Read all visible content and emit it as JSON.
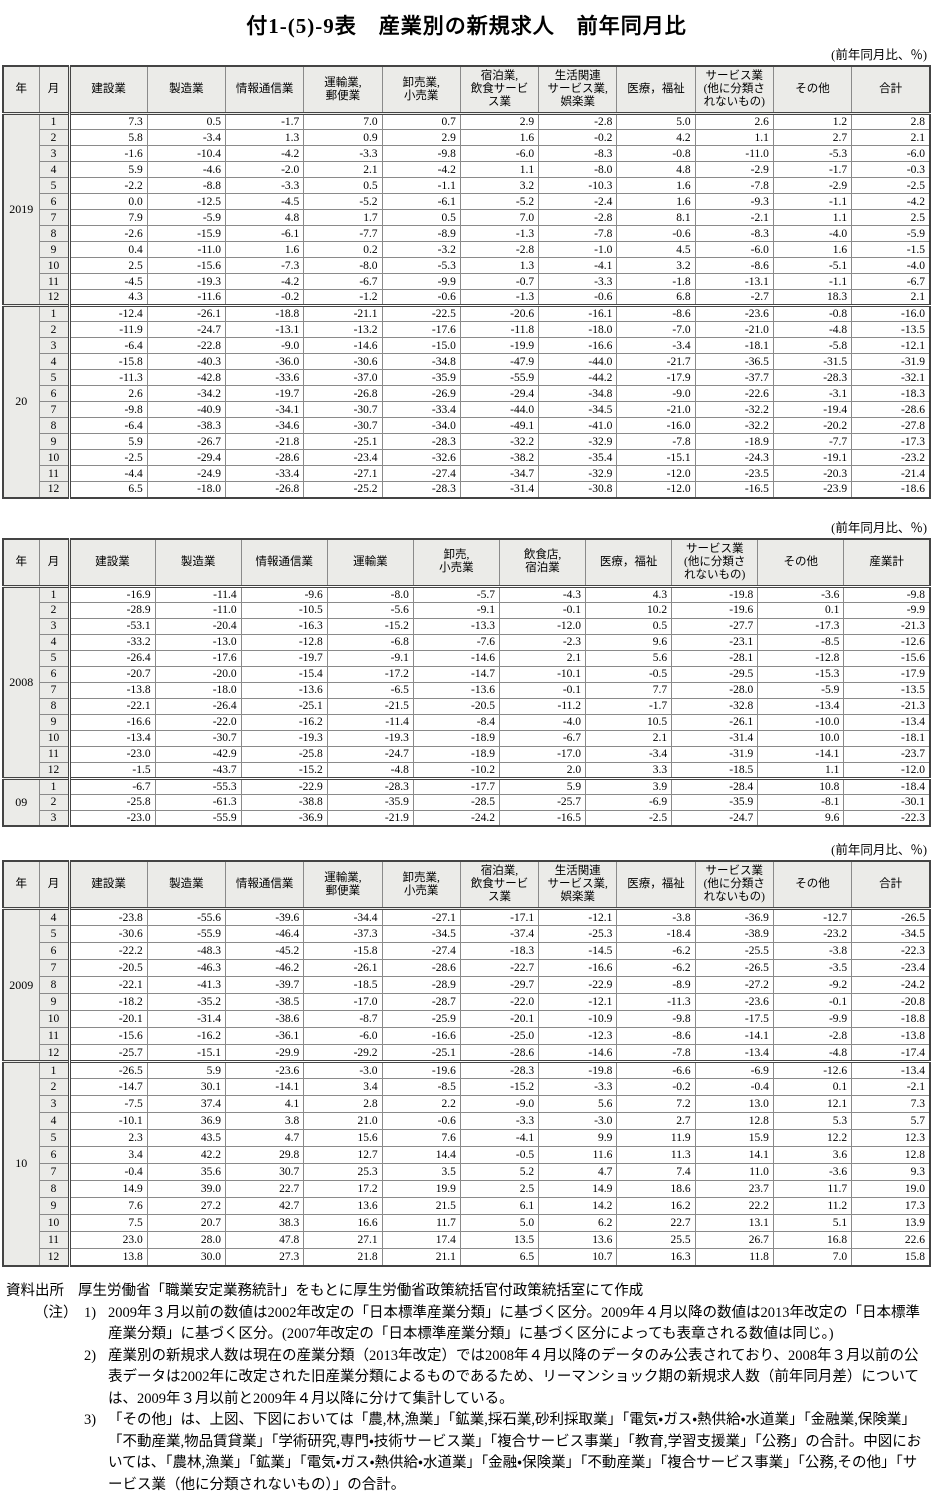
{
  "page": {
    "title": "付1-(5)-9表　産業別の新規求人　前年同月比"
  },
  "tables": [
    {
      "unit_note": "(前年同月比、％)",
      "col_headers": [
        "年",
        "月",
        "建設業",
        "製造業",
        "情報通信業",
        "運輸業,\n郵便業",
        "卸売業,\n小売業",
        "宿泊業,\n飲食サービ\nス業",
        "生活関連\nサービス業,\n娯楽業",
        "医療，福祉",
        "サービス業\n(他に分類さ\nれないもの)",
        "その他",
        "合計"
      ],
      "groups": [
        {
          "year": "2019",
          "rows": [
            [
              "1",
              "7.3",
              "0.5",
              "-1.7",
              "7.0",
              "0.7",
              "2.9",
              "-2.8",
              "5.0",
              "2.6",
              "1.2",
              "2.8"
            ],
            [
              "2",
              "5.8",
              "-3.4",
              "1.3",
              "0.9",
              "2.9",
              "1.6",
              "-0.2",
              "4.2",
              "1.1",
              "2.7",
              "2.1"
            ],
            [
              "3",
              "-1.6",
              "-10.4",
              "-4.2",
              "-3.3",
              "-9.8",
              "-6.0",
              "-8.3",
              "-0.8",
              "-11.0",
              "-5.3",
              "-6.0"
            ],
            [
              "4",
              "5.9",
              "-4.6",
              "-2.0",
              "2.1",
              "-4.2",
              "1.1",
              "-8.0",
              "4.8",
              "-2.9",
              "-1.7",
              "-0.3"
            ],
            [
              "5",
              "-2.2",
              "-8.8",
              "-3.3",
              "0.5",
              "-1.1",
              "3.2",
              "-10.3",
              "1.6",
              "-7.8",
              "-2.9",
              "-2.5"
            ],
            [
              "6",
              "0.0",
              "-12.5",
              "-4.5",
              "-5.2",
              "-6.1",
              "-5.2",
              "-2.4",
              "1.6",
              "-9.3",
              "-1.1",
              "-4.2"
            ],
            [
              "7",
              "7.9",
              "-5.9",
              "4.8",
              "1.7",
              "0.5",
              "7.0",
              "-2.8",
              "8.1",
              "-2.1",
              "1.1",
              "2.5"
            ],
            [
              "8",
              "-2.6",
              "-15.9",
              "-6.1",
              "-7.7",
              "-8.9",
              "-1.3",
              "-7.8",
              "-0.6",
              "-8.3",
              "-4.0",
              "-5.9"
            ],
            [
              "9",
              "0.4",
              "-11.0",
              "1.6",
              "0.2",
              "-3.2",
              "-2.8",
              "-1.0",
              "4.5",
              "-6.0",
              "1.6",
              "-1.5"
            ],
            [
              "10",
              "2.5",
              "-15.6",
              "-7.3",
              "-8.0",
              "-5.3",
              "1.3",
              "-4.1",
              "3.2",
              "-8.6",
              "-5.1",
              "-4.0"
            ],
            [
              "11",
              "-4.5",
              "-19.3",
              "-4.2",
              "-6.7",
              "-9.9",
              "-0.7",
              "-3.3",
              "-1.8",
              "-13.1",
              "-1.1",
              "-6.7"
            ],
            [
              "12",
              "4.3",
              "-11.6",
              "-0.2",
              "-1.2",
              "-0.6",
              "-1.3",
              "-0.6",
              "6.8",
              "-2.7",
              "18.3",
              "2.1"
            ]
          ]
        },
        {
          "year": "20",
          "rows": [
            [
              "1",
              "-12.4",
              "-26.1",
              "-18.8",
              "-21.1",
              "-22.5",
              "-20.6",
              "-16.1",
              "-8.6",
              "-23.6",
              "-0.8",
              "-16.0"
            ],
            [
              "2",
              "-11.9",
              "-24.7",
              "-13.1",
              "-13.2",
              "-17.6",
              "-11.8",
              "-18.0",
              "-7.0",
              "-21.0",
              "-4.8",
              "-13.5"
            ],
            [
              "3",
              "-6.4",
              "-22.8",
              "-9.0",
              "-14.6",
              "-15.0",
              "-19.9",
              "-16.6",
              "-3.4",
              "-18.1",
              "-5.8",
              "-12.1"
            ],
            [
              "4",
              "-15.8",
              "-40.3",
              "-36.0",
              "-30.6",
              "-34.8",
              "-47.9",
              "-44.0",
              "-21.7",
              "-36.5",
              "-31.5",
              "-31.9"
            ],
            [
              "5",
              "-11.3",
              "-42.8",
              "-33.6",
              "-37.0",
              "-35.9",
              "-55.9",
              "-44.2",
              "-17.9",
              "-37.7",
              "-28.3",
              "-32.1"
            ],
            [
              "6",
              "2.6",
              "-34.2",
              "-19.7",
              "-26.8",
              "-26.9",
              "-29.4",
              "-34.8",
              "-9.0",
              "-22.6",
              "-3.1",
              "-18.3"
            ],
            [
              "7",
              "-9.8",
              "-40.9",
              "-34.1",
              "-30.7",
              "-33.4",
              "-44.0",
              "-34.5",
              "-21.0",
              "-32.2",
              "-19.4",
              "-28.6"
            ],
            [
              "8",
              "-6.4",
              "-38.3",
              "-34.6",
              "-30.7",
              "-34.0",
              "-49.1",
              "-41.0",
              "-16.0",
              "-32.2",
              "-20.2",
              "-27.8"
            ],
            [
              "9",
              "5.9",
              "-26.7",
              "-21.8",
              "-25.1",
              "-28.3",
              "-32.2",
              "-32.9",
              "-7.8",
              "-18.9",
              "-7.7",
              "-17.3"
            ],
            [
              "10",
              "-2.5",
              "-29.4",
              "-28.6",
              "-23.4",
              "-32.6",
              "-38.2",
              "-35.4",
              "-15.1",
              "-24.3",
              "-19.1",
              "-23.2"
            ],
            [
              "11",
              "-4.4",
              "-24.9",
              "-33.4",
              "-27.1",
              "-27.4",
              "-34.7",
              "-32.9",
              "-12.0",
              "-23.5",
              "-20.3",
              "-21.4"
            ],
            [
              "12",
              "6.5",
              "-18.0",
              "-26.8",
              "-25.2",
              "-28.3",
              "-31.4",
              "-30.8",
              "-12.0",
              "-16.5",
              "-23.9",
              "-18.6"
            ]
          ]
        }
      ]
    },
    {
      "unit_note": "(前年同月比、％)",
      "col_headers": [
        "年",
        "月",
        "建設業",
        "製造業",
        "情報通信業",
        "運輸業",
        "卸売,\n小売業",
        "飲食店,\n宿泊業",
        "医療，福祉",
        "サービス業\n(他に分類さ\nれないもの)",
        "その他",
        "産業計"
      ],
      "groups": [
        {
          "year": "2008",
          "rows": [
            [
              "1",
              "-16.9",
              "-11.4",
              "-9.6",
              "-8.0",
              "-5.7",
              "-4.3",
              "4.3",
              "-19.8",
              "-3.6",
              "-9.8"
            ],
            [
              "2",
              "-28.9",
              "-11.0",
              "-10.5",
              "-5.6",
              "-9.1",
              "-0.1",
              "10.2",
              "-19.6",
              "0.1",
              "-9.9"
            ],
            [
              "3",
              "-53.1",
              "-20.4",
              "-16.3",
              "-15.2",
              "-13.3",
              "-12.0",
              "0.5",
              "-27.7",
              "-17.3",
              "-21.3"
            ],
            [
              "4",
              "-33.2",
              "-13.0",
              "-12.8",
              "-6.8",
              "-7.6",
              "-2.3",
              "9.6",
              "-23.1",
              "-8.5",
              "-12.6"
            ],
            [
              "5",
              "-26.4",
              "-17.6",
              "-19.7",
              "-9.1",
              "-14.6",
              "2.1",
              "5.6",
              "-28.1",
              "-12.8",
              "-15.6"
            ],
            [
              "6",
              "-20.7",
              "-20.0",
              "-15.4",
              "-17.2",
              "-14.7",
              "-10.1",
              "-0.5",
              "-29.5",
              "-15.3",
              "-17.9"
            ],
            [
              "7",
              "-13.8",
              "-18.0",
              "-13.6",
              "-6.5",
              "-13.6",
              "-0.1",
              "7.7",
              "-28.0",
              "-5.9",
              "-13.5"
            ],
            [
              "8",
              "-22.1",
              "-26.4",
              "-25.1",
              "-21.5",
              "-20.5",
              "-11.2",
              "-1.7",
              "-32.8",
              "-13.4",
              "-21.3"
            ],
            [
              "9",
              "-16.6",
              "-22.0",
              "-16.2",
              "-11.4",
              "-8.4",
              "-4.0",
              "10.5",
              "-26.1",
              "-10.0",
              "-13.4"
            ],
            [
              "10",
              "-13.4",
              "-30.7",
              "-19.3",
              "-19.3",
              "-18.9",
              "-6.7",
              "2.1",
              "-31.4",
              "10.0",
              "-18.1"
            ],
            [
              "11",
              "-23.0",
              "-42.9",
              "-25.8",
              "-24.7",
              "-18.9",
              "-17.0",
              "-3.4",
              "-31.9",
              "-14.1",
              "-23.7"
            ],
            [
              "12",
              "-1.5",
              "-43.7",
              "-15.2",
              "-4.8",
              "-10.2",
              "2.0",
              "3.3",
              "-18.5",
              "1.1",
              "-12.0"
            ]
          ]
        },
        {
          "year": "09",
          "rows": [
            [
              "1",
              "-6.7",
              "-55.3",
              "-22.9",
              "-28.3",
              "-17.7",
              "5.9",
              "3.9",
              "-28.4",
              "10.8",
              "-18.4"
            ],
            [
              "2",
              "-25.8",
              "-61.3",
              "-38.8",
              "-35.9",
              "-28.5",
              "-25.7",
              "-6.9",
              "-35.9",
              "-8.1",
              "-30.1"
            ],
            [
              "3",
              "-23.0",
              "-55.9",
              "-36.9",
              "-21.9",
              "-24.2",
              "-16.5",
              "-2.5",
              "-24.7",
              "9.6",
              "-22.3"
            ]
          ]
        }
      ]
    },
    {
      "unit_note": "(前年同月比、％)",
      "col_headers": [
        "年",
        "月",
        "建設業",
        "製造業",
        "情報通信業",
        "運輸業,\n郵便業",
        "卸売業,\n小売業",
        "宿泊業,\n飲食サービ\nス業",
        "生活関連\nサービス業,\n娯楽業",
        "医療，福祉",
        "サービス業\n(他に分類さ\nれないもの)",
        "その他",
        "合計"
      ],
      "groups": [
        {
          "year": "2009",
          "rows": [
            [
              "4",
              "-23.8",
              "-55.6",
              "-39.6",
              "-34.4",
              "-27.1",
              "-17.1",
              "-12.1",
              "-3.8",
              "-36.9",
              "-12.7",
              "-26.5"
            ],
            [
              "5",
              "-30.6",
              "-55.9",
              "-46.4",
              "-37.3",
              "-34.5",
              "-37.4",
              "-25.3",
              "-18.4",
              "-38.9",
              "-23.2",
              "-34.5"
            ],
            [
              "6",
              "-22.2",
              "-48.3",
              "-45.2",
              "-15.8",
              "-27.4",
              "-18.3",
              "-14.5",
              "-6.2",
              "-25.5",
              "-3.8",
              "-22.3"
            ],
            [
              "7",
              "-20.5",
              "-46.3",
              "-46.2",
              "-26.1",
              "-28.6",
              "-22.7",
              "-16.6",
              "-6.2",
              "-26.5",
              "-3.5",
              "-23.4"
            ],
            [
              "8",
              "-22.1",
              "-41.3",
              "-39.7",
              "-18.5",
              "-28.9",
              "-29.7",
              "-22.9",
              "-8.9",
              "-27.2",
              "-9.2",
              "-24.2"
            ],
            [
              "9",
              "-18.2",
              "-35.2",
              "-38.5",
              "-17.0",
              "-28.7",
              "-22.0",
              "-12.1",
              "-11.3",
              "-23.6",
              "-0.1",
              "-20.8"
            ],
            [
              "10",
              "-20.1",
              "-31.4",
              "-38.6",
              "-8.7",
              "-25.9",
              "-20.1",
              "-10.9",
              "-9.8",
              "-17.5",
              "-9.9",
              "-18.8"
            ],
            [
              "11",
              "-15.6",
              "-16.2",
              "-36.1",
              "-6.0",
              "-16.6",
              "-25.0",
              "-12.3",
              "-8.6",
              "-14.1",
              "-2.8",
              "-13.8"
            ],
            [
              "12",
              "-25.7",
              "-15.1",
              "-29.9",
              "-29.2",
              "-25.1",
              "-28.6",
              "-14.6",
              "-7.8",
              "-13.4",
              "-4.8",
              "-17.4"
            ]
          ]
        },
        {
          "year": "10",
          "rows": [
            [
              "1",
              "-26.5",
              "5.9",
              "-23.6",
              "-3.0",
              "-19.6",
              "-28.3",
              "-19.8",
              "-6.6",
              "-6.9",
              "-12.6",
              "-13.4"
            ],
            [
              "2",
              "-14.7",
              "30.1",
              "-14.1",
              "3.4",
              "-8.5",
              "-15.2",
              "-3.3",
              "-0.2",
              "-0.4",
              "0.1",
              "-2.1"
            ],
            [
              "3",
              "-7.5",
              "37.4",
              "4.1",
              "2.8",
              "2.2",
              "-9.0",
              "5.6",
              "7.2",
              "13.0",
              "12.1",
              "7.3"
            ],
            [
              "4",
              "-10.1",
              "36.9",
              "3.8",
              "21.0",
              "-0.6",
              "-3.3",
              "-3.0",
              "2.7",
              "12.8",
              "5.3",
              "5.7"
            ],
            [
              "5",
              "2.3",
              "43.5",
              "4.7",
              "15.6",
              "7.6",
              "-4.1",
              "9.9",
              "11.9",
              "15.9",
              "12.2",
              "12.3"
            ],
            [
              "6",
              "3.4",
              "42.2",
              "29.8",
              "12.7",
              "14.4",
              "-0.5",
              "11.6",
              "11.3",
              "14.1",
              "3.6",
              "12.8"
            ],
            [
              "7",
              "-0.4",
              "35.6",
              "30.7",
              "25.3",
              "3.5",
              "5.2",
              "4.7",
              "7.4",
              "11.0",
              "-3.6",
              "9.3"
            ],
            [
              "8",
              "14.9",
              "39.0",
              "22.7",
              "17.2",
              "19.9",
              "2.5",
              "14.9",
              "18.6",
              "23.7",
              "11.7",
              "19.0"
            ],
            [
              "9",
              "7.6",
              "27.2",
              "42.7",
              "13.6",
              "21.5",
              "6.1",
              "14.2",
              "16.2",
              "22.2",
              "11.2",
              "17.3"
            ],
            [
              "10",
              "7.5",
              "20.7",
              "38.3",
              "16.6",
              "11.7",
              "5.0",
              "6.2",
              "22.7",
              "13.1",
              "5.1",
              "13.9"
            ],
            [
              "11",
              "23.0",
              "28.0",
              "47.8",
              "27.1",
              "17.4",
              "13.5",
              "13.6",
              "25.5",
              "26.7",
              "16.8",
              "22.6"
            ],
            [
              "12",
              "13.8",
              "30.0",
              "27.3",
              "21.8",
              "21.1",
              "6.5",
              "10.7",
              "16.3",
              "11.8",
              "7.0",
              "15.8"
            ]
          ]
        }
      ]
    }
  ],
  "notes": {
    "source_label": "資料出所",
    "source_text": "厚生労働省「職業安定業務統計」をもとに厚生労働省政策統括官付政策統括室にて作成",
    "note_label": "（注）",
    "items": [
      {
        "num": "1)",
        "text": "2009年３月以前の数値は2002年改定の「日本標準産業分類」に基づく区分。2009年４月以降の数値は2013年改定の「日本標準産業分類」に基づく区分。(2007年改定の「日本標準産業分類」に基づく区分によっても表章される数値は同じ。)"
      },
      {
        "num": "2)",
        "text": "産業別の新規求人数は現在の産業分類（2013年改定）では2008年４月以降のデータのみ公表されており、2008年３月以前の公表データは2002年に改定された旧産業分類によるものであるため、リーマンショック期の新規求人数（前年同月差）については、2009年３月以前と2009年４月以降に分けて集計している。"
      },
      {
        "num": "3)",
        "text": "「その他」は、上図、下図においては「農,林,漁業」「鉱業,採石業,砂利採取業」「電気・ガス・熱供給・水道業」「金融業,保険業」「不動産業,物品賃貸業」「学術研究,専門・技術サービス業」「複合サービス事業」「教育,学習支援業」「公務」の合計。中図においては、「農林,漁業」「鉱業」「電気・ガス・熱供給・水道業」「金融・保険業」「不動産業」「複合サービス事業」「公務,その他」「サービス業（他に分類されないもの）」の合計。"
      }
    ]
  }
}
